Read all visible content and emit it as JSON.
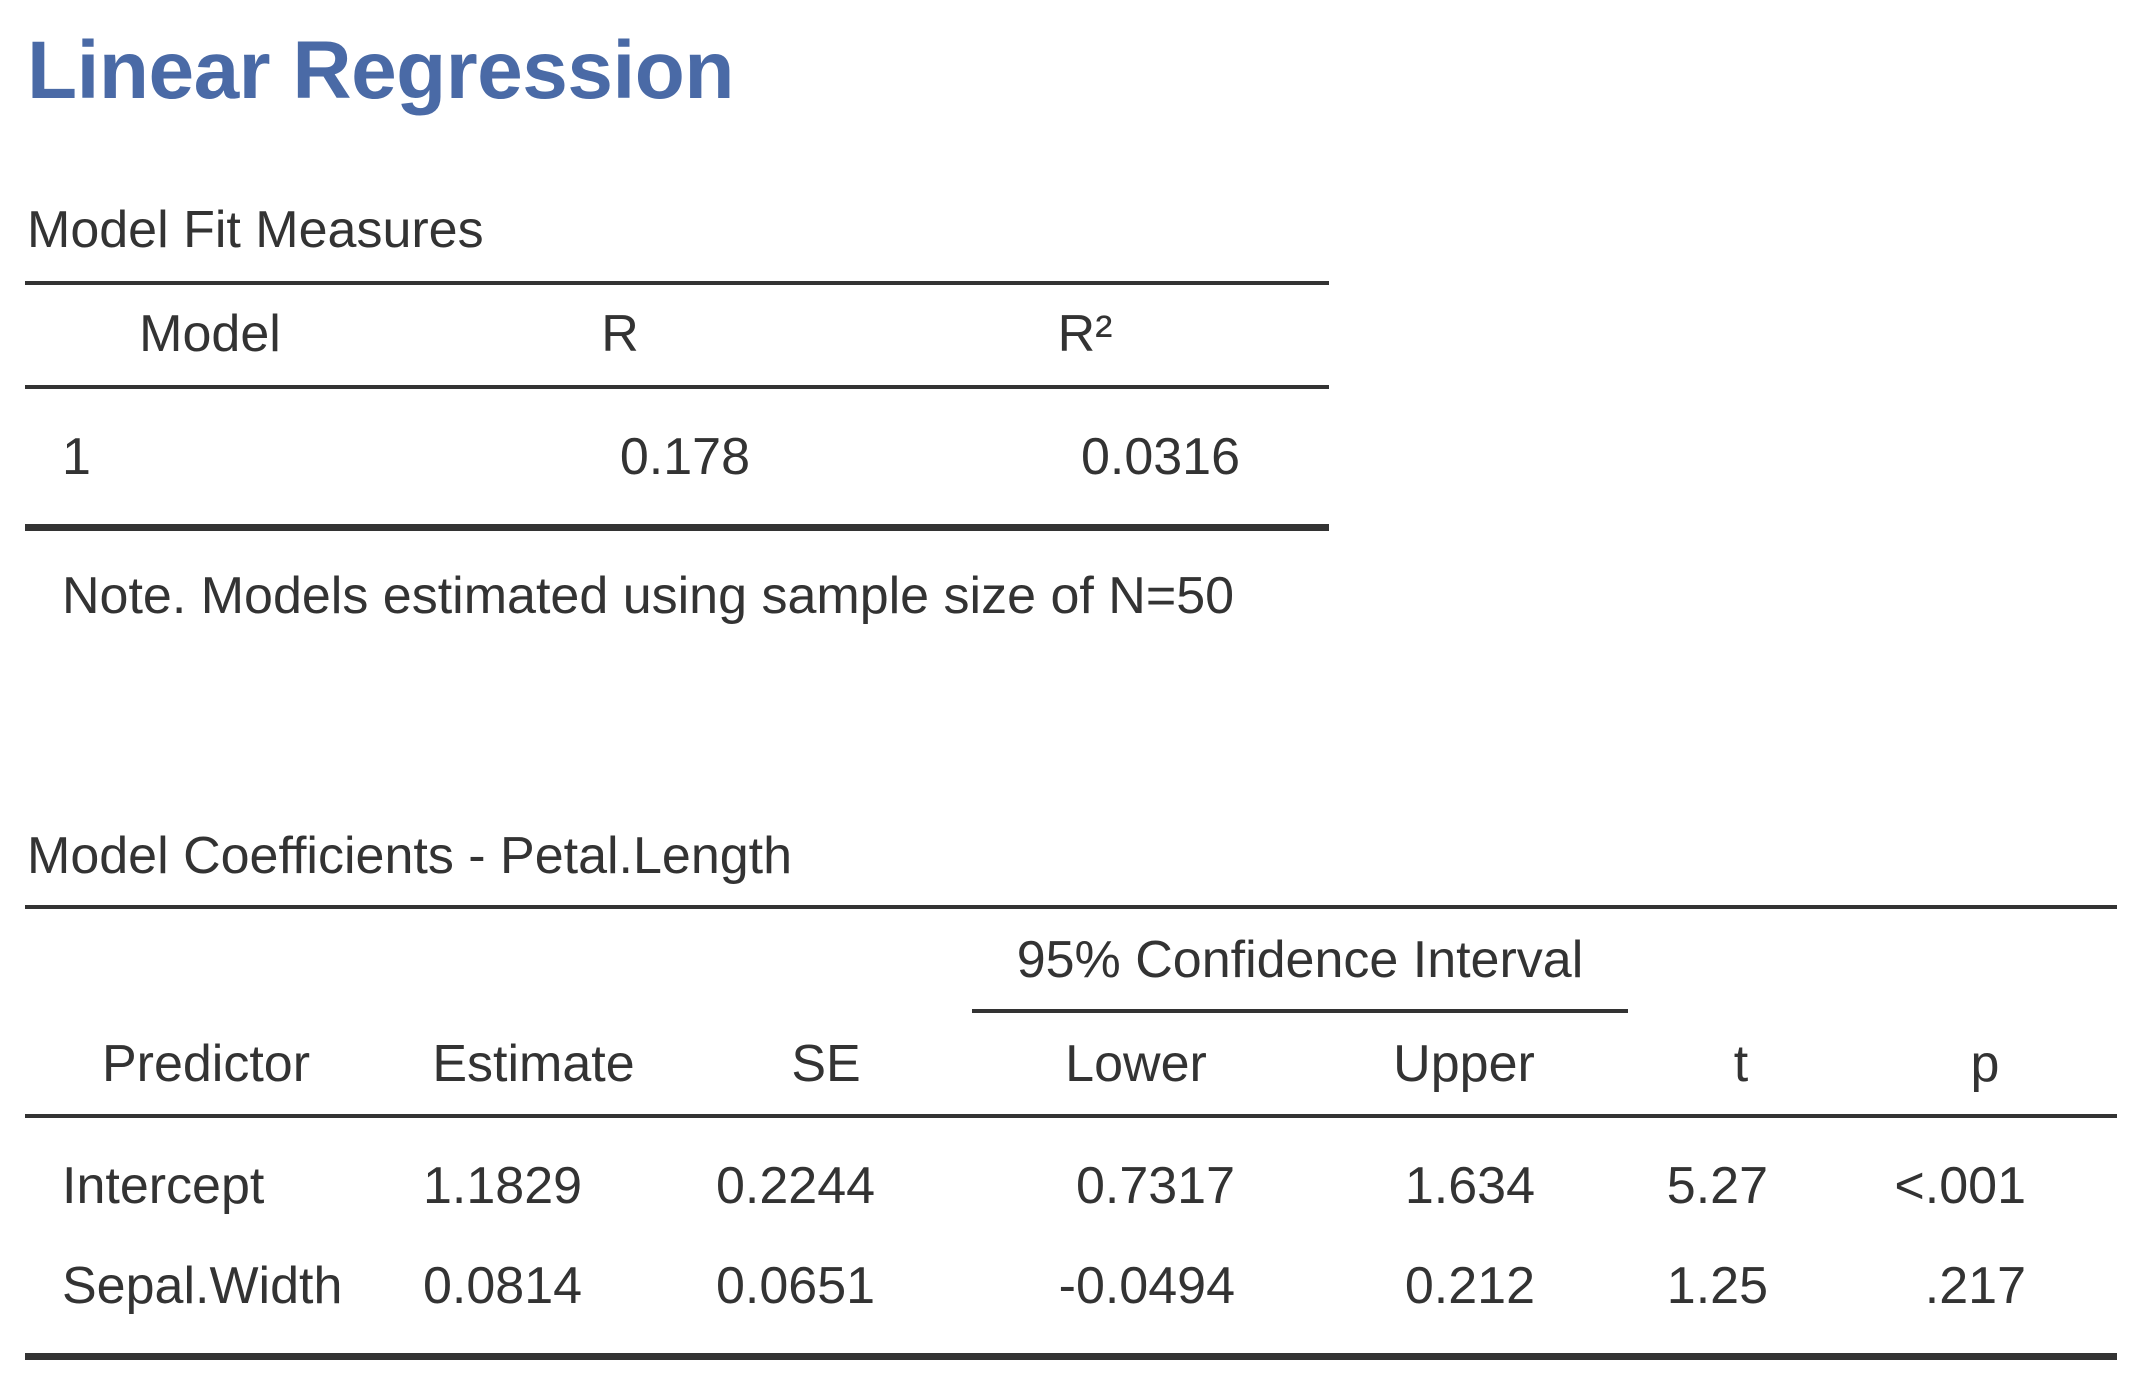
{
  "title": "Linear Regression",
  "fit_table": {
    "title": "Model Fit Measures",
    "headers": [
      "Model",
      "R",
      "R²"
    ],
    "rows": [
      {
        "model": "1",
        "r": "0.178",
        "r2": "0.0316"
      }
    ],
    "note": "Note. Models estimated using sample size of N=50"
  },
  "coef_table": {
    "title": "Model Coefficients - Petal.Length",
    "ci_header": "95% Confidence Interval",
    "headers": [
      "Predictor",
      "Estimate",
      "SE",
      "Lower",
      "Upper",
      "t",
      "p"
    ],
    "rows": [
      {
        "predictor": "Intercept",
        "estimate": "1.1829",
        "se": "0.2244",
        "lower": "0.7317",
        "upper": "1.634",
        "t": "5.27",
        "p": "<.001"
      },
      {
        "predictor": "Sepal.Width",
        "estimate": "0.0814",
        "se": "0.0651",
        "lower": "-0.0494",
        "upper": "0.212",
        "t": "1.25",
        "p": ".217"
      }
    ]
  }
}
